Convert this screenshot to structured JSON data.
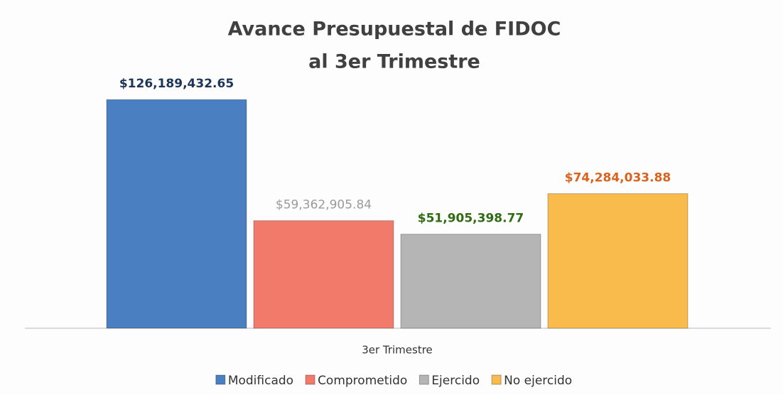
{
  "chart_data": {
    "type": "bar",
    "title": [
      "Avance Presupuestal  de FIDOC",
      "al 3er Trimestre"
    ],
    "categories": [
      "3er Trimestre"
    ],
    "series": [
      {
        "name": "Modificado",
        "color": "#4a7fc1",
        "label_color": "#1c3557",
        "values": [
          126189432.65
        ],
        "value_labels": [
          "$126,189,432.65"
        ]
      },
      {
        "name": "Comprometido",
        "color": "#f27a6b",
        "label_color": "#9a9a9a",
        "values": [
          59362905.84
        ],
        "value_labels": [
          "$59,362,905.84"
        ]
      },
      {
        "name": "Ejercido",
        "color": "#b5b5b5",
        "label_color": "#2f6b12",
        "values": [
          51905398.77
        ],
        "value_labels": [
          "$51,905,398.77"
        ]
      },
      {
        "name": "No ejercido",
        "color": "#f9bb4c",
        "label_color": "#d9621c",
        "values": [
          74284033.88
        ],
        "value_labels": [
          "$74,284,033.88"
        ]
      }
    ],
    "ylim": [
      0,
      140000000
    ],
    "legend": "bottom"
  }
}
